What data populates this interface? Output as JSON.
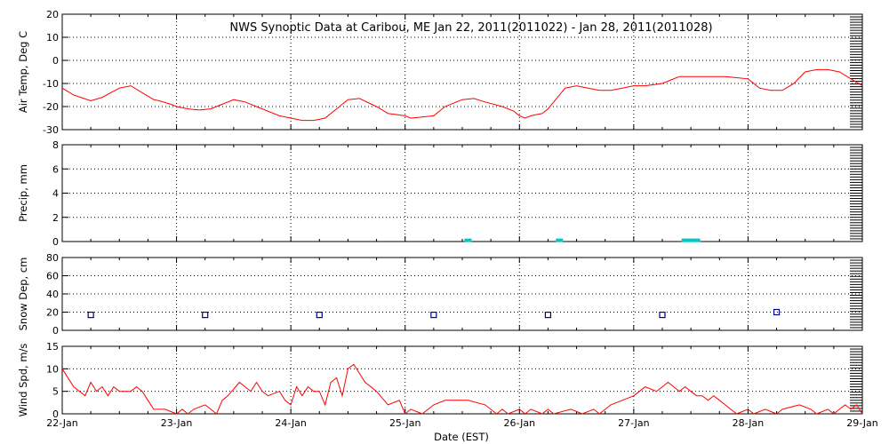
{
  "chart_data": {
    "type": "line",
    "title": "NWS Synoptic Data at Caribou, ME   Jan 22, 2011(2011022) - Jan 28, 2011(2011028)",
    "xlabel": "Date (EST)",
    "x_ticks": [
      "22-Jan",
      "23-Jan",
      "24-Jan",
      "25-Jan",
      "26-Jan",
      "27-Jan",
      "28-Jan",
      "29-Jan"
    ],
    "xlim": [
      0,
      7
    ],
    "colors": {
      "temp": "#ff0000",
      "precip": "#00c8c8",
      "snow": "#00008b",
      "wind": "#ff0000",
      "grid": "#000000"
    },
    "panels": [
      {
        "id": "temp",
        "ylabel": "Air Temp, Deg C",
        "ylim": [
          -30,
          20
        ],
        "yticks": [
          "-30",
          "-20",
          "-10",
          "0",
          "10",
          "20"
        ],
        "grid": true,
        "series": [
          {
            "x": [
              0,
              0.1,
              0.25,
              0.35,
              0.5,
              0.6,
              0.7,
              0.8,
              0.85,
              0.95,
              1.0,
              1.1,
              1.2,
              1.3,
              1.4,
              1.5,
              1.6,
              1.75,
              1.9,
              2.0,
              2.1,
              2.2,
              2.3,
              2.4,
              2.5,
              2.6,
              2.75,
              2.85,
              3.0,
              3.05,
              3.15,
              3.25,
              3.35,
              3.5,
              3.6,
              3.7,
              3.85,
              3.95,
              4.0,
              4.05,
              4.1,
              4.2,
              4.25,
              4.3,
              4.4,
              4.5,
              4.6,
              4.7,
              4.8,
              4.9,
              5.0,
              5.1,
              5.25,
              5.4,
              5.5,
              5.6,
              5.7,
              5.8,
              5.9,
              6.0,
              6.1,
              6.2,
              6.3,
              6.4,
              6.5,
              6.6,
              6.7,
              6.8,
              6.9,
              7.0
            ],
            "y": [
              -12,
              -15,
              -17.5,
              -16,
              -12,
              -11,
              -14,
              -17,
              -17.5,
              -19,
              -20,
              -21,
              -21.5,
              -21,
              -19,
              -17,
              -18,
              -21,
              -24,
              -25,
              -26,
              -26,
              -25,
              -21,
              -17,
              -16.5,
              -20,
              -23,
              -24,
              -25,
              -24.5,
              -24,
              -20,
              -17,
              -16.5,
              -18,
              -20,
              -22,
              -24,
              -25,
              -24,
              -23,
              -21,
              -18,
              -12,
              -11,
              -12,
              -13,
              -13,
              -12,
              -11,
              -11,
              -10,
              -7,
              -7,
              -7,
              -7,
              -7,
              -7.5,
              -8,
              -12,
              -13,
              -13,
              -10,
              -5,
              -4,
              -4,
              -5,
              -8,
              -11
            ]
          }
        ]
      },
      {
        "id": "precip",
        "ylabel": "Precip, mm",
        "ylim": [
          0,
          8
        ],
        "yticks": [
          "0",
          "2",
          "4",
          "6",
          "8"
        ],
        "grid": true,
        "series": [
          {
            "x": [
              3.55,
              4.35,
              5.45,
              5.5,
              5.55
            ],
            "y": [
              0.1,
              0.1,
              0.1,
              0.1,
              0.1
            ]
          }
        ]
      },
      {
        "id": "snow",
        "ylabel": "Snow Dep, cm",
        "ylim": [
          0,
          80
        ],
        "yticks": [
          "0",
          "20",
          "40",
          "60",
          "80"
        ],
        "grid": true,
        "series": [
          {
            "x": [
              0.25,
              1.25,
              2.25,
              3.25,
              4.25,
              5.25,
              6.25
            ],
            "y": [
              17,
              17,
              17,
              17,
              17,
              17,
              20
            ]
          }
        ]
      },
      {
        "id": "wind",
        "ylabel": "Wind Spd, m/s",
        "ylim": [
          0,
          15
        ],
        "yticks": [
          "0",
          "5",
          "10",
          "15"
        ],
        "grid": true,
        "series": [
          {
            "x": [
              0,
              0.1,
              0.2,
              0.25,
              0.3,
              0.35,
              0.4,
              0.45,
              0.5,
              0.6,
              0.65,
              0.7,
              0.75,
              0.8,
              0.9,
              1.0,
              1.05,
              1.1,
              1.15,
              1.25,
              1.3,
              1.35,
              1.4,
              1.45,
              1.55,
              1.6,
              1.65,
              1.7,
              1.75,
              1.8,
              1.9,
              1.95,
              2.0,
              2.05,
              2.1,
              2.15,
              2.2,
              2.25,
              2.3,
              2.35,
              2.4,
              2.45,
              2.5,
              2.55,
              2.6,
              2.65,
              2.75,
              2.85,
              2.95,
              3.0,
              3.05,
              3.15,
              3.25,
              3.35,
              3.55,
              3.7,
              3.8,
              3.85,
              3.9,
              4.0,
              4.05,
              4.1,
              4.2,
              4.25,
              4.3,
              4.45,
              4.55,
              4.65,
              4.7,
              4.8,
              4.9,
              5.0,
              5.05,
              5.1,
              5.2,
              5.25,
              5.3,
              5.35,
              5.4,
              5.45,
              5.5,
              5.55,
              5.6,
              5.65,
              5.7,
              5.75,
              5.8,
              5.9,
              6.0,
              6.05,
              6.15,
              6.25,
              6.3,
              6.45,
              6.55,
              6.6,
              6.7,
              6.75,
              6.8,
              6.85,
              6.9,
              6.95,
              7.0
            ],
            "y": [
              10,
              6,
              4,
              7,
              5,
              6,
              4,
              6,
              5,
              5,
              6,
              5,
              3,
              1,
              1,
              0,
              1,
              0,
              1,
              2,
              1,
              0,
              3,
              4,
              7,
              6,
              5,
              7,
              5,
              4,
              5,
              3,
              2,
              6,
              4,
              6,
              5,
              5,
              2,
              7,
              8,
              4,
              10,
              11,
              9,
              7,
              5,
              2,
              3,
              0,
              1,
              0,
              2,
              3,
              3,
              2,
              0,
              1,
              0,
              1,
              0,
              1,
              0,
              1,
              0,
              1,
              0,
              1,
              0,
              2,
              3,
              4,
              5,
              6,
              5,
              6,
              7,
              6,
              5,
              6,
              5,
              4,
              4,
              3,
              4,
              3,
              2,
              0,
              1,
              0,
              1,
              0,
              1,
              2,
              1,
              0,
              1,
              0,
              1,
              2,
              1,
              2,
              0
            ]
          }
        ]
      }
    ]
  }
}
